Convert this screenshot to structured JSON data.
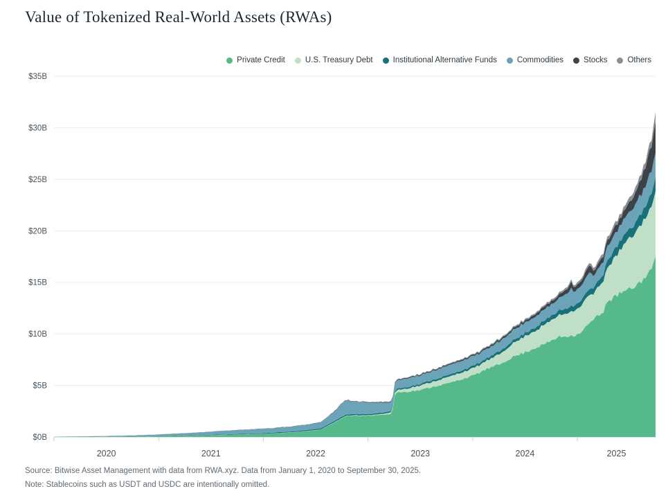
{
  "page": {
    "title": "Value of Tokenized Real-World Assets (RWAs)",
    "source": "Source: Bitwise Asset Management with data from RWA.xyz. Data from January 1, 2020 to September 30, 2025.",
    "note": "Note: Stablecoins such as USDT and USDC are intentionally omitted."
  },
  "chart_data": {
    "type": "area",
    "stacked": true,
    "title": "Value of Tokenized Real-World Assets (RWAs)",
    "value_unit": "$ billions",
    "x_range_years": [
      2020.0,
      2025.747
    ],
    "x_tick_labels": [
      "2020",
      "2021",
      "2022",
      "2023",
      "2024",
      "2025"
    ],
    "y_tick_values": [
      0,
      5,
      10,
      15,
      20,
      25,
      30,
      35
    ],
    "y_tick_labels": [
      "$0B",
      "$5B",
      "$10B",
      "$15B",
      "$20B",
      "$25B",
      "$30B",
      "$35B"
    ],
    "ylim": [
      0,
      35
    ],
    "grid": "horizontal",
    "legend_position": "top-right",
    "axis_color": "#c6ccd1",
    "grid_color": "#e9ebee",
    "label_color": "#46525c",
    "series": [
      {
        "name": "Private Credit",
        "color": "#56b98a",
        "anchors": [
          [
            2020.0,
            0.01
          ],
          [
            2020.5,
            0.03
          ],
          [
            2021.0,
            0.07
          ],
          [
            2021.5,
            0.17
          ],
          [
            2021.8,
            0.25
          ],
          [
            2022.0,
            0.3
          ],
          [
            2022.3,
            0.45
          ],
          [
            2022.55,
            0.7
          ],
          [
            2022.68,
            1.4
          ],
          [
            2022.78,
            2.0
          ],
          [
            2023.0,
            2.1
          ],
          [
            2023.23,
            2.2
          ],
          [
            2023.26,
            4.3
          ],
          [
            2023.5,
            4.5
          ],
          [
            2023.75,
            5.2
          ],
          [
            2024.0,
            6.0
          ],
          [
            2024.25,
            7.1
          ],
          [
            2024.5,
            8.3
          ],
          [
            2024.75,
            9.4
          ],
          [
            2025.0,
            10.0
          ],
          [
            2025.1,
            10.9
          ],
          [
            2025.2,
            11.7
          ],
          [
            2025.245,
            12.0
          ],
          [
            2025.265,
            13.0
          ],
          [
            2025.35,
            13.5
          ],
          [
            2025.45,
            14.1
          ],
          [
            2025.55,
            14.7
          ],
          [
            2025.62,
            15.2
          ],
          [
            2025.68,
            15.9
          ],
          [
            2025.72,
            16.3
          ],
          [
            2025.747,
            17.2
          ]
        ]
      },
      {
        "name": "U.S. Treasury Debt",
        "color": "#bfe0c6",
        "anchors": [
          [
            2020.0,
            0.0
          ],
          [
            2022.0,
            0.01
          ],
          [
            2022.6,
            0.03
          ],
          [
            2023.0,
            0.05
          ],
          [
            2023.15,
            0.08
          ],
          [
            2023.3,
            0.25
          ],
          [
            2023.45,
            0.4
          ],
          [
            2023.6,
            0.5
          ],
          [
            2023.8,
            0.62
          ],
          [
            2024.0,
            0.7
          ],
          [
            2024.2,
            0.85
          ],
          [
            2024.35,
            1.25
          ],
          [
            2024.5,
            1.55
          ],
          [
            2024.65,
            1.8
          ],
          [
            2024.8,
            2.1
          ],
          [
            2024.95,
            2.4
          ],
          [
            2025.05,
            2.6
          ],
          [
            2025.1,
            2.8
          ],
          [
            2025.16,
            2.4
          ],
          [
            2025.22,
            2.9
          ],
          [
            2025.3,
            3.4
          ],
          [
            2025.4,
            4.2
          ],
          [
            2025.5,
            4.8
          ],
          [
            2025.6,
            5.4
          ],
          [
            2025.68,
            5.8
          ],
          [
            2025.747,
            6.2
          ]
        ]
      },
      {
        "name": "Institutional Alternative Funds",
        "color": "#17707a",
        "anchors": [
          [
            2020.0,
            0.0
          ],
          [
            2021.0,
            0.02
          ],
          [
            2022.0,
            0.06
          ],
          [
            2022.7,
            0.12
          ],
          [
            2023.0,
            0.12
          ],
          [
            2023.5,
            0.15
          ],
          [
            2024.0,
            0.22
          ],
          [
            2024.5,
            0.3
          ],
          [
            2024.8,
            0.42
          ],
          [
            2025.0,
            0.52
          ],
          [
            2025.15,
            0.58
          ],
          [
            2025.3,
            0.75
          ],
          [
            2025.45,
            0.85
          ],
          [
            2025.6,
            1.0
          ],
          [
            2025.7,
            1.15
          ],
          [
            2025.747,
            1.3
          ]
        ]
      },
      {
        "name": "Commodities",
        "color": "#6ba3b8",
        "anchors": [
          [
            2020.0,
            0.02
          ],
          [
            2020.4,
            0.04
          ],
          [
            2020.7,
            0.07
          ],
          [
            2021.0,
            0.14
          ],
          [
            2021.3,
            0.22
          ],
          [
            2021.6,
            0.33
          ],
          [
            2021.85,
            0.42
          ],
          [
            2022.1,
            0.42
          ],
          [
            2022.35,
            0.5
          ],
          [
            2022.55,
            0.55
          ],
          [
            2022.68,
            0.95
          ],
          [
            2022.78,
            1.35
          ],
          [
            2022.9,
            1.15
          ],
          [
            2023.05,
            1.05
          ],
          [
            2023.2,
            0.9
          ],
          [
            2023.27,
            0.8
          ],
          [
            2023.5,
            0.85
          ],
          [
            2023.75,
            0.9
          ],
          [
            2024.0,
            0.92
          ],
          [
            2024.3,
            0.95
          ],
          [
            2024.6,
            1.05
          ],
          [
            2024.8,
            1.15
          ],
          [
            2024.9,
            1.4
          ],
          [
            2024.94,
            1.65
          ],
          [
            2024.98,
            1.3
          ],
          [
            2025.06,
            1.45
          ],
          [
            2025.12,
            1.65
          ],
          [
            2025.17,
            1.1
          ],
          [
            2025.27,
            1.3
          ],
          [
            2025.4,
            1.5
          ],
          [
            2025.5,
            1.65
          ],
          [
            2025.6,
            1.85
          ],
          [
            2025.7,
            2.1
          ],
          [
            2025.747,
            2.35
          ]
        ]
      },
      {
        "name": "Stocks",
        "color": "#3c4248",
        "anchors": [
          [
            2020.0,
            0.0
          ],
          [
            2022.0,
            0.01
          ],
          [
            2023.0,
            0.04
          ],
          [
            2023.5,
            0.08
          ],
          [
            2024.0,
            0.12
          ],
          [
            2024.5,
            0.2
          ],
          [
            2024.8,
            0.32
          ],
          [
            2024.9,
            0.45
          ],
          [
            2024.94,
            0.6
          ],
          [
            2024.98,
            0.42
          ],
          [
            2025.06,
            0.55
          ],
          [
            2025.12,
            0.75
          ],
          [
            2025.17,
            0.45
          ],
          [
            2025.27,
            0.6
          ],
          [
            2025.4,
            0.75
          ],
          [
            2025.5,
            0.95
          ],
          [
            2025.58,
            1.25
          ],
          [
            2025.65,
            1.7
          ],
          [
            2025.7,
            2.2
          ],
          [
            2025.73,
            2.6
          ],
          [
            2025.747,
            2.9
          ]
        ]
      },
      {
        "name": "Others",
        "color": "#8a9094",
        "anchors": [
          [
            2020.0,
            0.0
          ],
          [
            2022.0,
            0.01
          ],
          [
            2023.0,
            0.03
          ],
          [
            2024.0,
            0.08
          ],
          [
            2024.5,
            0.12
          ],
          [
            2025.0,
            0.2
          ],
          [
            2025.25,
            0.3
          ],
          [
            2025.5,
            0.42
          ],
          [
            2025.65,
            0.55
          ],
          [
            2025.72,
            0.7
          ],
          [
            2025.747,
            0.85
          ]
        ]
      }
    ]
  }
}
